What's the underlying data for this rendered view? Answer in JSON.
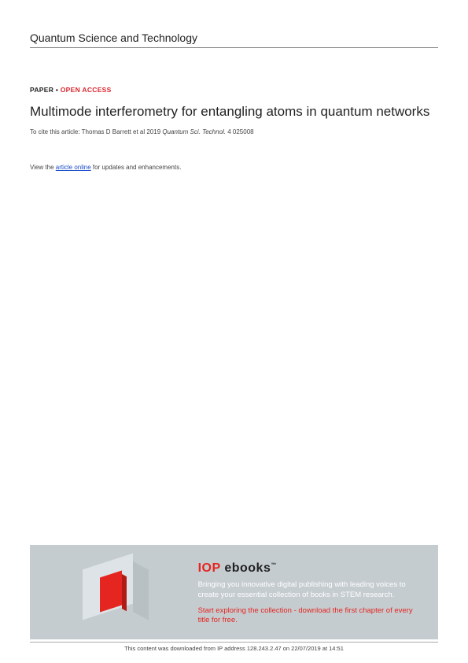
{
  "journal_name": "Quantum Science and Technology",
  "paper_label": "PAPER",
  "separator": " • ",
  "open_access_label": "OPEN ACCESS",
  "title": "Multimode interferometry for entangling atoms in quantum networks",
  "citation_prefix": "To cite this article: Thomas D Barrett et al 2019 ",
  "citation_journal": "Quantum Sci. Technol.",
  "citation_suffix": " 4 025008",
  "view_prefix": "View the ",
  "article_online_link": "article online",
  "view_suffix": " for updates and enhancements.",
  "banner": {
    "brand_iop": "IOP",
    "brand_ebooks": " ebooks",
    "trademark": "™",
    "subtitle": "Bringing you innovative digital publishing with leading voices to create your essential collection of books in STEM research.",
    "cta": "Start exploring the collection - download the first chapter of every title for free."
  },
  "footer": "This content was downloaded from IP address 128.243.2.47 on 22/07/2019 at 14:51",
  "colors": {
    "accent_red": "#e5251f",
    "open_access_red": "#d9262e",
    "link_blue": "#1a4cc7",
    "banner_bg": "#c5ccd0",
    "text": "#222222"
  }
}
